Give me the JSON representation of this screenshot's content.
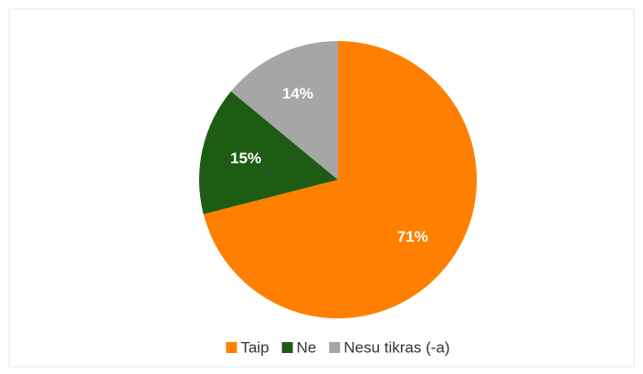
{
  "chart_data": {
    "type": "pie",
    "categories": [
      "Taip",
      "Ne",
      "Nesu tikras (-a)"
    ],
    "values": [
      71,
      15,
      14
    ],
    "value_labels": [
      "71%",
      "15%",
      "14%"
    ],
    "colors": [
      "#ff8000",
      "#1e5c14",
      "#a6a6a6"
    ],
    "legend": "bottom"
  }
}
